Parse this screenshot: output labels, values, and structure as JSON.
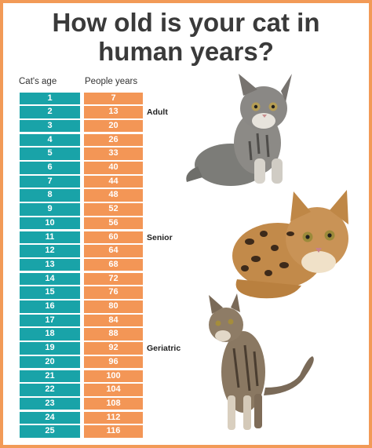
{
  "title": "How old is your cat in human years?",
  "headers": {
    "age": "Cat's age",
    "people": "People years"
  },
  "rows": [
    {
      "age": "1",
      "human": "7"
    },
    {
      "age": "2",
      "human": "13"
    },
    {
      "age": "3",
      "human": "20"
    },
    {
      "age": "4",
      "human": "26"
    },
    {
      "age": "5",
      "human": "33"
    },
    {
      "age": "6",
      "human": "40"
    },
    {
      "age": "7",
      "human": "44"
    },
    {
      "age": "8",
      "human": "48"
    },
    {
      "age": "9",
      "human": "52"
    },
    {
      "age": "10",
      "human": "56"
    },
    {
      "age": "11",
      "human": "60"
    },
    {
      "age": "12",
      "human": "64"
    },
    {
      "age": "13",
      "human": "68"
    },
    {
      "age": "14",
      "human": "72"
    },
    {
      "age": "15",
      "human": "76"
    },
    {
      "age": "16",
      "human": "80"
    },
    {
      "age": "17",
      "human": "84"
    },
    {
      "age": "18",
      "human": "88"
    },
    {
      "age": "19",
      "human": "92"
    },
    {
      "age": "20",
      "human": "96"
    },
    {
      "age": "21",
      "human": "100"
    },
    {
      "age": "22",
      "human": "104"
    },
    {
      "age": "23",
      "human": "108"
    },
    {
      "age": "24",
      "human": "112"
    },
    {
      "age": "25",
      "human": "116"
    }
  ],
  "stages": [
    {
      "label": "Adult",
      "row": 2
    },
    {
      "label": "Senior",
      "row": 11
    },
    {
      "label": "Geriatric",
      "row": 19
    }
  ],
  "colors": {
    "age_cell": "#19a3a8",
    "human_cell": "#f39656",
    "border": "#f29a57"
  }
}
